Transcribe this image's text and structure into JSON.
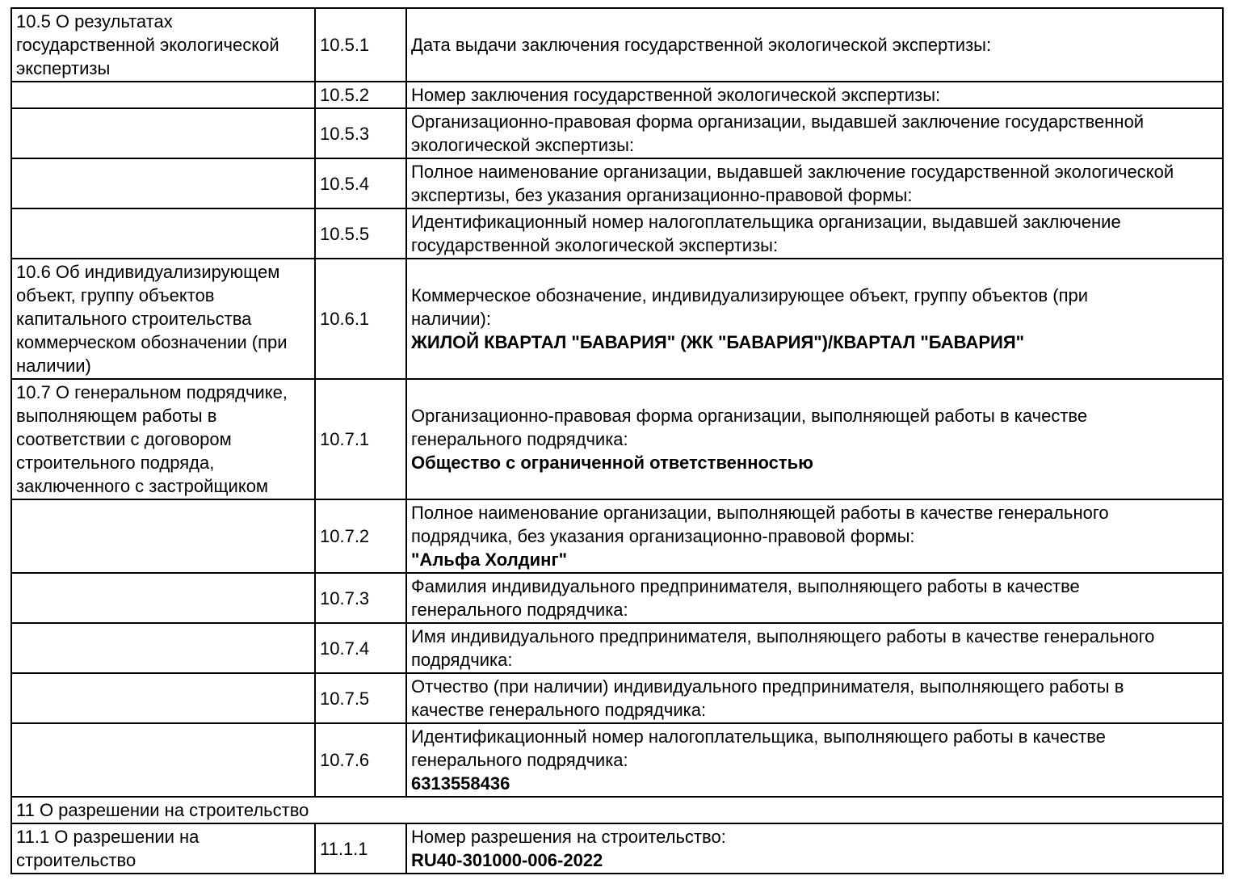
{
  "rows": [
    {
      "section": "10.5 О результатах\nгосударственной экологической\nэкспертизы",
      "num": "10.5.1",
      "label": "Дата выдачи заключения государственной экологической экспертизы:"
    },
    {
      "section": "",
      "num": "10.5.2",
      "label": "Номер заключения государственной экологической экспертизы:"
    },
    {
      "section": "",
      "num": "10.5.3",
      "label": "Организационно-правовая форма организации, выдавшей заключение государственной\nэкологической экспертизы:"
    },
    {
      "section": "",
      "num": "10.5.4",
      "label": "Полное наименование организации, выдавшей заключение государственной экологической\nэкспертизы, без указания организационно-правовой формы:"
    },
    {
      "section": "",
      "num": "10.5.5",
      "label": "Идентификационный номер налогоплательщика организации, выдавшей заключение\nгосударственной экологической экспертизы:"
    },
    {
      "section": "10.6 Об индивидуализирующем\nобъект, группу объектов\nкапитального строительства\nкоммерческом обозначении (при\nналичии)",
      "num": "10.6.1",
      "label": "Коммерческое обозначение, индивидуализирующее объект, группу объектов (при\nналичии):",
      "value": "ЖИЛОЙ КВАРТАЛ \"БАВАРИЯ\" (ЖК \"БАВАРИЯ\")/КВАРТАЛ \"БАВАРИЯ\""
    },
    {
      "section": "10.7 О генеральном подрядчике,\nвыполняющем работы в\nсоответствии с договором\nстроительного подряда,\nзаключенного с застройщиком",
      "num": "10.7.1",
      "label": "Организационно-правовая форма организации, выполняющей работы в качестве\nгенерального подрядчика:",
      "value": "Общество с ограниченной ответственностью"
    },
    {
      "section": "",
      "num": "10.7.2",
      "label": "Полное наименование организации, выполняющей работы в качестве генерального\nподрядчика, без указания организационно-правовой формы:",
      "value": "\"Альфа Холдинг\""
    },
    {
      "section": "",
      "num": "10.7.3",
      "label": "Фамилия индивидуального предпринимателя, выполняющего работы в качестве\nгенерального подрядчика:"
    },
    {
      "section": "",
      "num": "10.7.4",
      "label": "Имя индивидуального предпринимателя, выполняющего работы в качестве генерального\nподрядчика:"
    },
    {
      "section": "",
      "num": "10.7.5",
      "label": "Отчество (при наличии) индивидуального предпринимателя, выполняющего работы в\nкачестве генерального подрядчика:"
    },
    {
      "section": "",
      "num": "10.7.6",
      "label": "Идентификационный номер налогоплательщика, выполняющего работы в качестве\nгенерального подрядчика:",
      "value": "6313558436"
    },
    {
      "header": "11 О разрешении на строительство"
    },
    {
      "section": "11.1 О разрешении на\nстроительство",
      "num": "11.1.1",
      "label": "Номер разрешения на строительство:",
      "value": "RU40-301000-006-2022"
    }
  ]
}
